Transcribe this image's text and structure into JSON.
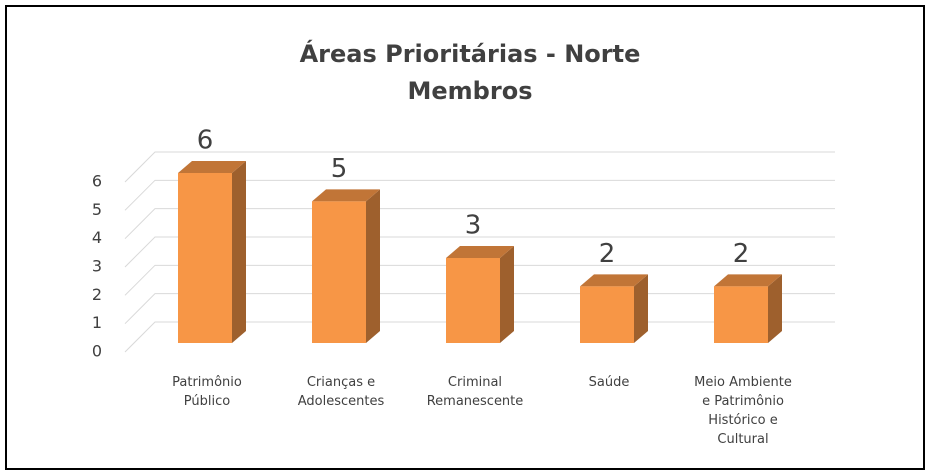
{
  "chart_data": {
    "type": "bar3d",
    "title": "Áreas Prioritárias - Norte",
    "subtitle": "Membros",
    "categories": [
      "Patrimônio Público",
      "Crianças e Adolescentes",
      "Criminal Remanescente",
      "Saúde",
      "Meio Ambiente e Patrimônio Histórico e Cultural"
    ],
    "values": [
      6,
      5,
      3,
      2,
      2
    ],
    "color": "#f79646",
    "ylim": [
      0,
      6
    ],
    "yticks": [
      0,
      1,
      2,
      3,
      4,
      5,
      6
    ],
    "grid": true
  }
}
